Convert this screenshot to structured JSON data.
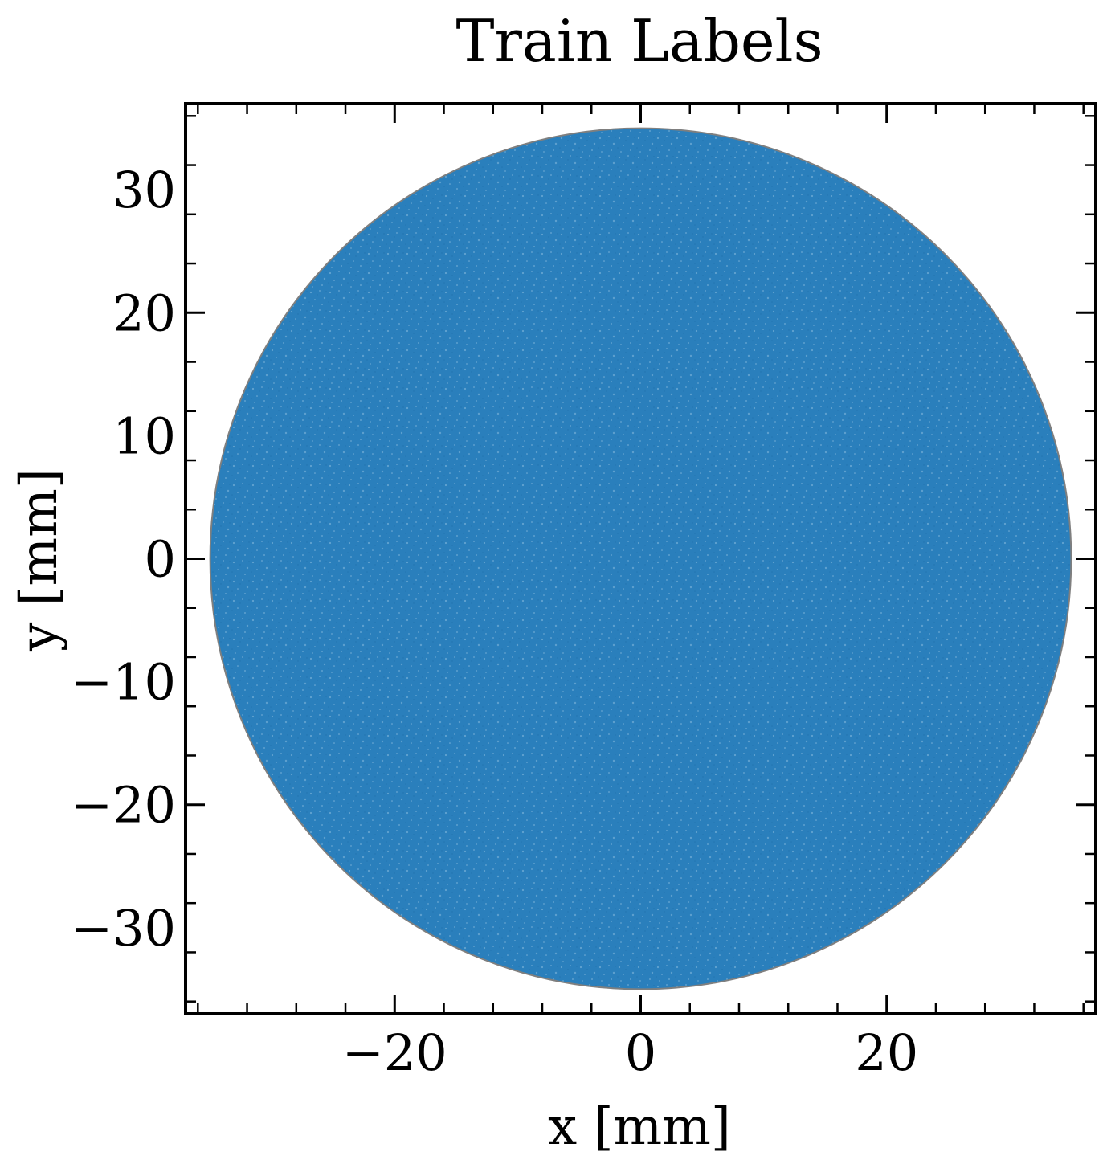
{
  "chart_data": {
    "type": "scatter",
    "title": "Train Labels",
    "xlabel": "x [mm]",
    "ylabel": "y [mm]",
    "xlim": [
      -37,
      37
    ],
    "ylim": [
      -37,
      37
    ],
    "x_ticks": [
      -20,
      0,
      20
    ],
    "x_tick_labels": [
      "−20",
      "0",
      "20"
    ],
    "y_ticks": [
      -30,
      -20,
      -10,
      0,
      10,
      20,
      30
    ],
    "y_tick_labels": [
      "−30",
      "−20",
      "−10",
      "0",
      "10",
      "20",
      "30"
    ],
    "minor_tick_step": 4,
    "grid": false,
    "legend": "none",
    "region": {
      "shape": "disk",
      "center": [
        0,
        0
      ],
      "radius": 35,
      "description": "dense uniform scatter of points filling a disk"
    },
    "colors": {
      "points": "#1f77b4",
      "disk_edge": "#7f7f7f",
      "axes": "#000000"
    }
  }
}
